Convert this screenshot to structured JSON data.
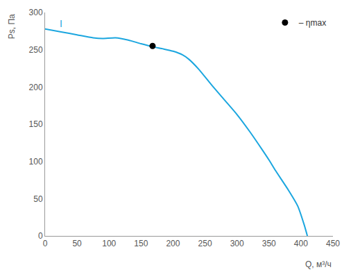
{
  "chart_data": {
    "type": "line",
    "xlabel": "Q, м³/ч",
    "ylabel": "Ps, Па",
    "xlim": [
      0,
      450
    ],
    "xticks": [
      0,
      50,
      100,
      150,
      200,
      250,
      300,
      350,
      400,
      450
    ],
    "ylim": [
      0,
      300
    ],
    "yticks": [
      0,
      50,
      100,
      150,
      200,
      250,
      300
    ],
    "grid": false,
    "legend": "upper right",
    "series": [
      {
        "name": "I",
        "type": "line",
        "color": "#1ba6df",
        "x": [
          0,
          25,
          50,
          75,
          90,
          110,
          130,
          150,
          168,
          185,
          200,
          215,
          225,
          240,
          260,
          280,
          300,
          320,
          340,
          350,
          360,
          380,
          395,
          405,
          410
        ],
        "values": [
          278,
          274,
          270,
          266,
          265,
          266,
          263,
          258,
          254,
          251,
          248,
          243,
          237,
          224,
          203,
          183,
          163,
          140,
          115,
          102,
          88,
          62,
          40,
          15,
          0
        ]
      },
      {
        "name": "– ηmax",
        "type": "scatter",
        "color": "#000000",
        "marker": "circle",
        "x": [
          168
        ],
        "values": [
          255
        ]
      }
    ]
  }
}
